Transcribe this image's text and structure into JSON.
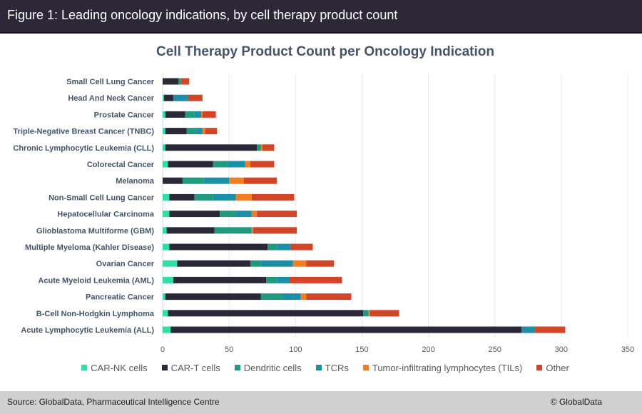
{
  "figure_header": "Figure 1: Leading oncology indications, by cell therapy product count",
  "footer": {
    "source": "Source: GlobalData, Pharmaceutical Intelligence Centre",
    "copyright": "© GlobalData"
  },
  "chart_data": {
    "type": "bar",
    "orientation": "horizontal",
    "stacked": true,
    "title": "Cell Therapy Product Count per Oncology Indication",
    "xlabel": "",
    "ylabel": "",
    "xlim": [
      0,
      350
    ],
    "xticks": [
      0,
      50,
      100,
      150,
      200,
      250,
      300,
      350
    ],
    "grid": true,
    "legend_position": "bottom",
    "categories": [
      "Small Cell Lung Cancer",
      "Head And Neck Cancer",
      "Prostate Cancer",
      "Triple-Negative Breast Cancer (TNBC)",
      "Chronic Lymphocytic Leukemia (CLL)",
      "Colorectal Cancer",
      "Melanoma",
      "Non-Small Cell Lung Cancer",
      "Hepatocellular Carcinoma",
      "Glioblastoma Multiforme (GBM)",
      "Multiple Myeloma (Kahler Disease)",
      "Ovarian Cancer",
      "Acute Myeloid Leukemia (AML)",
      "Pancreatic Cancer",
      "B-Cell Non-Hodgkin Lymphoma",
      "Acute Lymphocytic Leukemia (ALL)"
    ],
    "series": [
      {
        "name": "CAR-NK cells",
        "color": "#2ee0a6",
        "values": [
          0,
          1,
          2,
          2,
          2,
          4,
          0,
          5,
          5,
          3,
          5,
          11,
          8,
          2,
          4,
          6
        ]
      },
      {
        "name": "CAR-T cells",
        "color": "#2b2838",
        "values": [
          12,
          7,
          15,
          16,
          69,
          34,
          15,
          19,
          38,
          36,
          74,
          55,
          70,
          72,
          147,
          264
        ]
      },
      {
        "name": "Dendritic cells",
        "color": "#1f9a7c",
        "values": [
          2,
          0,
          7,
          7,
          3,
          11,
          16,
          14,
          12,
          28,
          7,
          8,
          8,
          16,
          4,
          0
        ]
      },
      {
        "name": "TCRs",
        "color": "#1b8fa8",
        "values": [
          0,
          11,
          5,
          5,
          0,
          13,
          19,
          17,
          12,
          0,
          10,
          24,
          9,
          14,
          0,
          10
        ]
      },
      {
        "name": "Tumor-infiltrating lymphocytes (TILs)",
        "color": "#f47d20",
        "values": [
          0,
          0,
          1,
          2,
          1,
          4,
          11,
          12,
          4,
          1,
          0,
          10,
          0,
          4,
          1,
          0
        ]
      },
      {
        "name": "Other",
        "color": "#d24527",
        "values": [
          6,
          11,
          10,
          9,
          9,
          18,
          25,
          32,
          30,
          33,
          17,
          21,
          40,
          34,
          22,
          23
        ]
      }
    ]
  }
}
